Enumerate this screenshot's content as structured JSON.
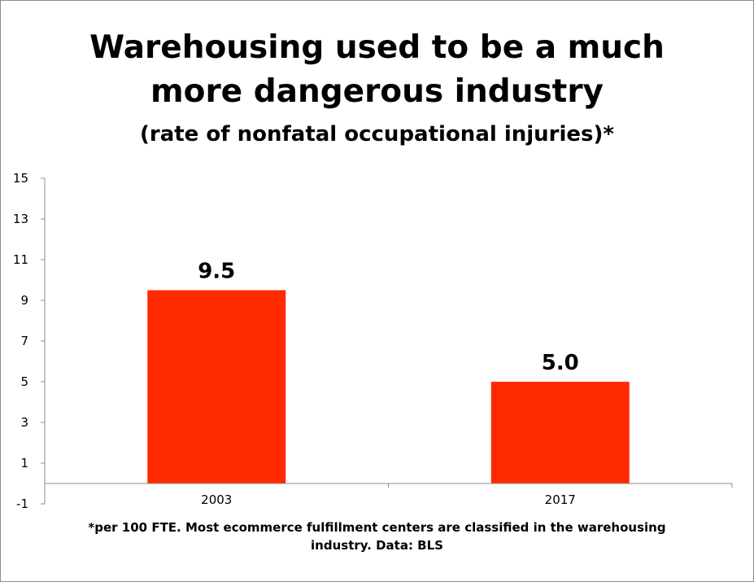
{
  "chart_data": {
    "type": "bar",
    "title_line1": "Warehousing used to be a much",
    "title_line2": "more dangerous industry",
    "subtitle": "(rate of nonfatal occupational injuries)*",
    "categories": [
      "2003",
      "2017"
    ],
    "values": [
      9.5,
      5.0
    ],
    "data_labels": [
      "9.5",
      "5.0"
    ],
    "ylim": [
      -1,
      15
    ],
    "yticks": [
      -1,
      1,
      3,
      5,
      7,
      9,
      11,
      13,
      15
    ],
    "bar_color": "#ff2a00",
    "grid": false,
    "legend": "none"
  },
  "footnote": {
    "line1": "*per 100 FTE. Most ecommerce fulfillment centers are classified in the warehousing",
    "line2": "industry.  Data: BLS"
  }
}
